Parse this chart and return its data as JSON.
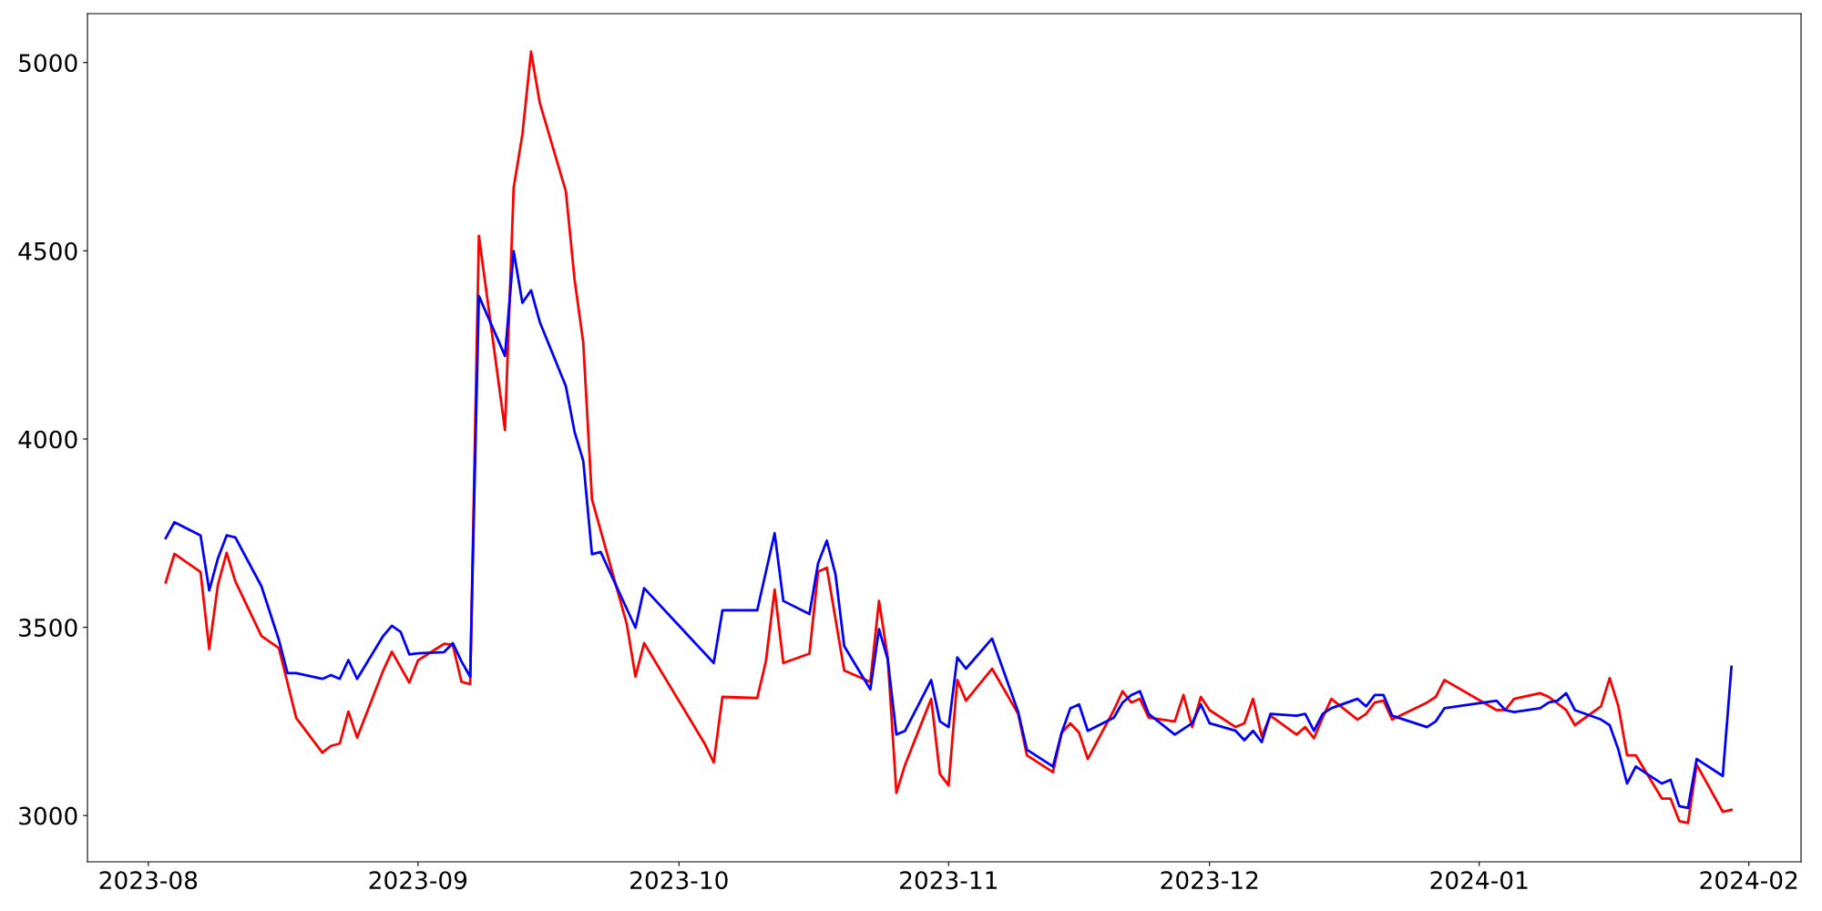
{
  "chart_data": {
    "type": "line",
    "xlim": [
      "2023-07-25",
      "2024-02-07"
    ],
    "ylim": [
      2877,
      5130
    ],
    "xticks": [
      {
        "value": "2023-08",
        "label": "2023-08"
      },
      {
        "value": "2023-09",
        "label": "2023-09"
      },
      {
        "value": "2023-10",
        "label": "2023-10"
      },
      {
        "value": "2023-11",
        "label": "2023-11"
      },
      {
        "value": "2023-12",
        "label": "2023-12"
      },
      {
        "value": "2024-01",
        "label": "2024-01"
      },
      {
        "value": "2024-02",
        "label": "2024-02"
      }
    ],
    "yticks": [
      3000,
      3500,
      4000,
      4500,
      5000
    ],
    "grid": false,
    "marker": "none",
    "line_style": "solid",
    "series": [
      {
        "color": "#ff0000",
        "x": [
          "2023-08-03",
          "2023-08-04",
          "2023-08-07",
          "2023-08-08",
          "2023-08-09",
          "2023-08-10",
          "2023-08-11",
          "2023-08-14",
          "2023-08-16",
          "2023-08-18",
          "2023-08-21",
          "2023-08-22",
          "2023-08-23",
          "2023-08-24",
          "2023-08-25",
          "2023-08-28",
          "2023-08-29",
          "2023-08-30",
          "2023-08-31",
          "2023-09-01",
          "2023-09-04",
          "2023-09-05",
          "2023-09-06",
          "2023-09-07",
          "2023-09-08",
          "2023-09-11",
          "2023-09-12",
          "2023-09-13",
          "2023-09-14",
          "2023-09-15",
          "2023-09-18",
          "2023-09-19",
          "2023-09-20",
          "2023-09-21",
          "2023-09-25",
          "2023-09-26",
          "2023-09-27",
          "2023-10-04",
          "2023-10-05",
          "2023-10-06",
          "2023-10-10",
          "2023-10-11",
          "2023-10-12",
          "2023-10-13",
          "2023-10-16",
          "2023-10-17",
          "2023-10-18",
          "2023-10-20",
          "2023-10-23",
          "2023-10-24",
          "2023-10-25",
          "2023-10-26",
          "2023-10-27",
          "2023-10-30",
          "2023-10-31",
          "2023-11-01",
          "2023-11-02",
          "2023-11-03",
          "2023-11-06",
          "2023-11-08",
          "2023-11-09",
          "2023-11-10",
          "2023-11-13",
          "2023-11-14",
          "2023-11-15",
          "2023-11-16",
          "2023-11-17",
          "2023-11-20",
          "2023-11-21",
          "2023-11-22",
          "2023-11-23",
          "2023-11-24",
          "2023-11-27",
          "2023-11-28",
          "2023-11-29",
          "2023-11-30",
          "2023-12-01",
          "2023-12-04",
          "2023-12-05",
          "2023-12-06",
          "2023-12-07",
          "2023-12-08",
          "2023-12-11",
          "2023-12-12",
          "2023-12-13",
          "2023-12-14",
          "2023-12-15",
          "2023-12-18",
          "2023-12-19",
          "2023-12-20",
          "2023-12-21",
          "2023-12-22",
          "2023-12-26",
          "2023-12-27",
          "2023-12-28",
          "2024-01-03",
          "2024-01-04",
          "2024-01-05",
          "2024-01-08",
          "2024-01-09",
          "2024-01-11",
          "2024-01-12",
          "2024-01-15",
          "2024-01-16",
          "2024-01-17",
          "2024-01-18",
          "2024-01-19",
          "2024-01-22",
          "2024-01-23",
          "2024-01-24",
          "2024-01-25",
          "2024-01-26",
          "2024-01-29",
          "2024-01-30"
        ],
        "values": [
          3619,
          3695,
          3647,
          3442,
          3613,
          3698,
          3622,
          3477,
          3445,
          3259,
          3167,
          3185,
          3191,
          3276,
          3207,
          3385,
          3435,
          3394,
          3353,
          3412,
          3456,
          3453,
          3355,
          3349,
          4540,
          4024,
          4668,
          4809,
          5029,
          4893,
          4658,
          4424,
          4256,
          3840,
          3509,
          3369,
          3458,
          3189,
          3141,
          3315,
          3312,
          3410,
          3600,
          3405,
          3430,
          3648,
          3658,
          3385,
          3355,
          3570,
          3420,
          3060,
          3135,
          3310,
          3110,
          3080,
          3360,
          3305,
          3390,
          3310,
          3270,
          3160,
          3115,
          3220,
          3245,
          3220,
          3150,
          3280,
          3330,
          3300,
          3310,
          3260,
          3250,
          3320,
          3235,
          3315,
          3280,
          3235,
          3245,
          3310,
          3210,
          3265,
          3215,
          3235,
          3205,
          3260,
          3310,
          3255,
          3270,
          3300,
          3305,
          3255,
          3300,
          3315,
          3360,
          3280,
          3280,
          3310,
          3325,
          3315,
          3280,
          3240,
          3290,
          3365,
          3290,
          3160,
          3160,
          3045,
          3045,
          2985,
          2980,
          3135,
          3010,
          3015
        ]
      },
      {
        "color": "#0000ff",
        "x": [
          "2023-08-03",
          "2023-08-04",
          "2023-08-07",
          "2023-08-08",
          "2023-08-09",
          "2023-08-10",
          "2023-08-11",
          "2023-08-14",
          "2023-08-16",
          "2023-08-17",
          "2023-08-18",
          "2023-08-21",
          "2023-08-22",
          "2023-08-23",
          "2023-08-24",
          "2023-08-25",
          "2023-08-28",
          "2023-08-29",
          "2023-08-30",
          "2023-08-31",
          "2023-09-01",
          "2023-09-04",
          "2023-09-05",
          "2023-09-06",
          "2023-09-07",
          "2023-09-08",
          "2023-09-11",
          "2023-09-12",
          "2023-09-13",
          "2023-09-14",
          "2023-09-15",
          "2023-09-18",
          "2023-09-19",
          "2023-09-20",
          "2023-09-21",
          "2023-09-22",
          "2023-09-26",
          "2023-09-27",
          "2023-10-05",
          "2023-10-06",
          "2023-10-10",
          "2023-10-12",
          "2023-10-13",
          "2023-10-16",
          "2023-10-17",
          "2023-10-18",
          "2023-10-19",
          "2023-10-20",
          "2023-10-23",
          "2023-10-24",
          "2023-10-25",
          "2023-10-26",
          "2023-10-27",
          "2023-10-30",
          "2023-10-31",
          "2023-11-01",
          "2023-11-02",
          "2023-11-03",
          "2023-11-06",
          "2023-11-08",
          "2023-11-09",
          "2023-11-10",
          "2023-11-13",
          "2023-11-14",
          "2023-11-15",
          "2023-11-16",
          "2023-11-17",
          "2023-11-20",
          "2023-11-21",
          "2023-11-22",
          "2023-11-23",
          "2023-11-24",
          "2023-11-27",
          "2023-11-28",
          "2023-11-29",
          "2023-11-30",
          "2023-12-01",
          "2023-12-04",
          "2023-12-05",
          "2023-12-06",
          "2023-12-07",
          "2023-12-08",
          "2023-12-11",
          "2023-12-12",
          "2023-12-13",
          "2023-12-14",
          "2023-12-15",
          "2023-12-18",
          "2023-12-19",
          "2023-12-20",
          "2023-12-21",
          "2023-12-22",
          "2023-12-26",
          "2023-12-27",
          "2023-12-28",
          "2024-01-03",
          "2024-01-04",
          "2024-01-05",
          "2024-01-08",
          "2024-01-09",
          "2024-01-10",
          "2024-01-11",
          "2024-01-12",
          "2024-01-15",
          "2024-01-16",
          "2024-01-17",
          "2024-01-18",
          "2024-01-19",
          "2024-01-22",
          "2024-01-23",
          "2024-01-24",
          "2024-01-25",
          "2024-01-26",
          "2024-01-29",
          "2024-01-30"
        ],
        "values": [
          3737,
          3779,
          3744,
          3598,
          3683,
          3744,
          3739,
          3609,
          3467,
          3378,
          3378,
          3363,
          3373,
          3363,
          3413,
          3363,
          3477,
          3504,
          3488,
          3428,
          3431,
          3434,
          3458,
          3409,
          3369,
          4380,
          4221,
          4499,
          4362,
          4395,
          4311,
          4140,
          4019,
          3942,
          3694,
          3700,
          3499,
          3604,
          3405,
          3545,
          3545,
          3750,
          3570,
          3535,
          3670,
          3730,
          3640,
          3450,
          3335,
          3495,
          3415,
          3215,
          3225,
          3360,
          3250,
          3235,
          3420,
          3390,
          3470,
          3340,
          3275,
          3175,
          3130,
          3220,
          3285,
          3295,
          3225,
          3260,
          3300,
          3320,
          3330,
          3270,
          3215,
          3230,
          3245,
          3295,
          3245,
          3225,
          3200,
          3225,
          3195,
          3270,
          3265,
          3270,
          3225,
          3270,
          3285,
          3310,
          3290,
          3320,
          3320,
          3265,
          3235,
          3250,
          3285,
          3305,
          3280,
          3275,
          3285,
          3300,
          3305,
          3325,
          3280,
          3255,
          3240,
          3175,
          3085,
          3130,
          3085,
          3095,
          3025,
          3020,
          3150,
          3105,
          3395
        ]
      }
    ]
  }
}
